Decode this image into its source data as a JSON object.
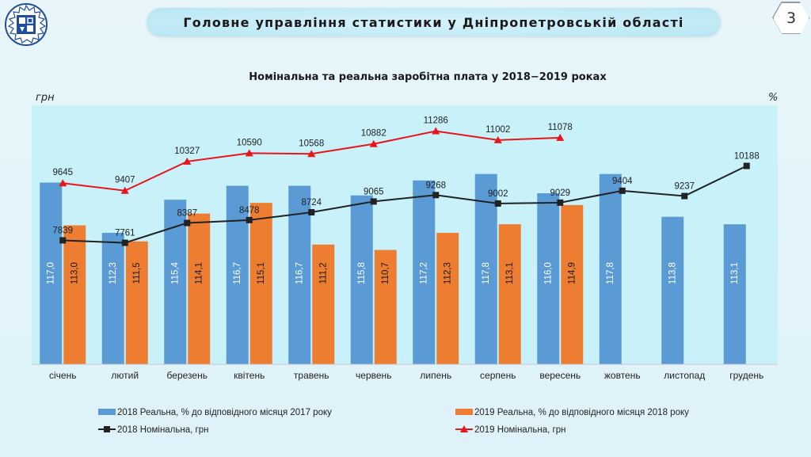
{
  "header": {
    "title": "Головне управління статистики у Дніпропетровській області",
    "page_number": "3"
  },
  "colors": {
    "bar_2018": "#5b9bd5",
    "bar_2019": "#ed7d31",
    "line_2018": "#222222",
    "line_2019": "#e8151a",
    "plot_bg": "#c8f1fa"
  },
  "chart_data": {
    "type": "bar",
    "title": "Номінальна та реальна заробітна плата у 2018−2019 роках",
    "ylabel_left": "грн",
    "ylabel_right": "%",
    "categories": [
      "січень",
      "лютий",
      "березень",
      "квітень",
      "травень",
      "червень",
      "липень",
      "серпень",
      "вересень",
      "жовтень",
      "листопад",
      "грудень"
    ],
    "series": [
      {
        "name": "2018 Реальна, % до відповідного місяця 2017 року",
        "kind": "bar",
        "axis": "right",
        "values": [
          117.0,
          112.3,
          115.4,
          116.7,
          116.7,
          115.8,
          117.2,
          117.8,
          116.0,
          117.8,
          113.8,
          113.1
        ],
        "labels": [
          "117,0",
          "112,3",
          "115,4",
          "116,7",
          "116,7",
          "115,8",
          "117,2",
          "117,8",
          "116,0",
          "117,8",
          "113,8",
          "113,1"
        ]
      },
      {
        "name": "2019 Реальна, % до відповідного місяця 2018 року",
        "kind": "bar",
        "axis": "right",
        "values": [
          113.0,
          111.5,
          114.1,
          115.1,
          111.2,
          110.7,
          112.3,
          113.1,
          114.9,
          null,
          null,
          null
        ],
        "labels": [
          "113,0",
          "111,5",
          "114,1",
          "115,1",
          "111,2",
          "110,7",
          "112,3",
          "113,1",
          "114,9",
          null,
          null,
          null
        ]
      },
      {
        "name": "2018 Номінальна, грн",
        "kind": "line",
        "axis": "left",
        "values": [
          7839,
          7761,
          8387,
          8478,
          8724,
          9065,
          9268,
          9002,
          9029,
          9404,
          9237,
          10188
        ]
      },
      {
        "name": "2019 Номінальна, грн",
        "kind": "line",
        "axis": "left",
        "values": [
          9645,
          9407,
          10327,
          10590,
          10568,
          10882,
          11286,
          11002,
          11078,
          null,
          null,
          null
        ]
      }
    ]
  }
}
